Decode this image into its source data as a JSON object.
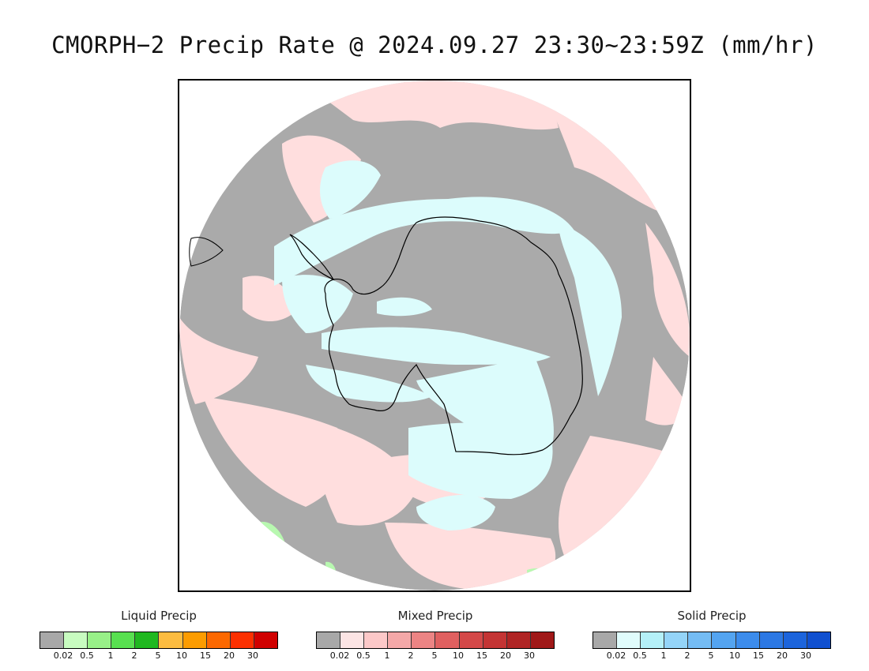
{
  "title": "CMORPH−2 Precip Rate @ 2024.09.27 23:30~23:59Z (mm/hr)",
  "map": {
    "colors": {
      "no_precip": "#aaaaaa",
      "mixed_light": "#ffdede",
      "solid_light": "#dcfcfc",
      "liquid_light": "#b8f8b0",
      "coastline": "#000000"
    }
  },
  "legends": [
    {
      "name": "liquid",
      "title": "Liquid Precip",
      "colors": [
        "#a8a8a8",
        "#c8fcc0",
        "#98f088",
        "#58e050",
        "#20b820",
        "#fcbc40",
        "#fc9c00",
        "#fc6800",
        "#fc3000",
        "#d00000"
      ],
      "ticks": [
        "0.02",
        "0.5",
        "1",
        "2",
        "5",
        "10",
        "15",
        "20",
        "30"
      ]
    },
    {
      "name": "mixed",
      "title": "Mixed Precip",
      "colors": [
        "#a8a8a8",
        "#fce4e4",
        "#fcc8c8",
        "#f4a8a8",
        "#ec8484",
        "#e06060",
        "#d44848",
        "#c43434",
        "#b02424",
        "#a01818"
      ],
      "ticks": [
        "0.02",
        "0.5",
        "1",
        "2",
        "5",
        "10",
        "15",
        "20",
        "30"
      ]
    },
    {
      "name": "solid",
      "title": "Solid Precip",
      "colors": [
        "#a8a8a8",
        "#e0fcfc",
        "#b4f0f8",
        "#94d4f8",
        "#74bcf4",
        "#54a4f0",
        "#3c8cec",
        "#2c78e4",
        "#1c64dc",
        "#1050d0"
      ],
      "ticks": [
        "0.02",
        "0.5",
        "1",
        "2",
        "5",
        "10",
        "15",
        "20",
        "30"
      ]
    }
  ]
}
